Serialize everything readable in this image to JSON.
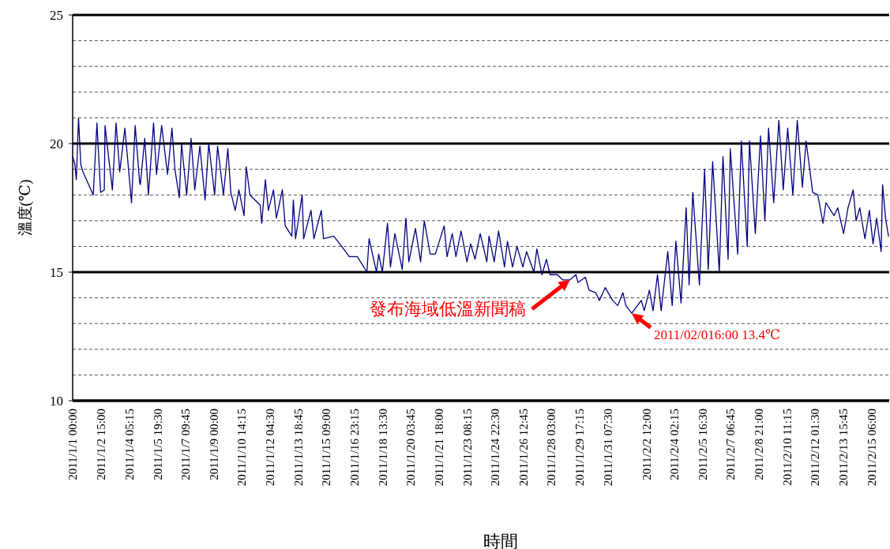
{
  "chart_data": {
    "type": "line",
    "xlabel": "時間",
    "ylabel": "溫度(℃)",
    "x": [
      "2011-01-01T00:00",
      "2011-01-01T03:00",
      "2011-01-01T05:00",
      "2011-01-01T08:00",
      "2011-01-01T11:00",
      "2011-01-01T14:00",
      "2011-01-02T04:00",
      "2011-01-02T09:00",
      "2011-01-02T14:00",
      "2011-01-02T19:00",
      "2011-01-02T20:00",
      "2011-01-03T06:00",
      "2011-01-03T11:00",
      "2011-01-03T16:00",
      "2011-01-03T23:00",
      "2011-01-04T08:00",
      "2011-01-04T13:00",
      "2011-01-04T19:00",
      "2011-01-04T20:00",
      "2011-01-05T02:00",
      "2011-01-05T07:00",
      "2011-01-05T14:00",
      "2011-01-05T18:00",
      "2011-01-06T01:00",
      "2011-01-06T09:00",
      "2011-01-06T15:00",
      "2011-01-06T19:00",
      "2011-01-07T01:00",
      "2011-01-07T04:00",
      "2011-01-07T11:00",
      "2011-01-07T17:00",
      "2011-01-07T22:00",
      "2011-01-08T05:00",
      "2011-01-08T12:00",
      "2011-01-08T17:00",
      "2011-01-09T01:00",
      "2011-01-09T05:00",
      "2011-01-09T13:00",
      "2011-01-09T19:00",
      "2011-01-09T23:00",
      "2011-01-10T05:00",
      "2011-01-10T10:00",
      "2011-01-10T17:00",
      "2011-01-10T20:00",
      "2011-01-11T01:00",
      "2011-01-11T15:00",
      "2011-01-11T17:00",
      "2011-01-11T22:00",
      "2011-01-12T02:00",
      "2011-01-12T09:00",
      "2011-01-12T13:00",
      "2011-01-12T21:00",
      "2011-01-13T01:00",
      "2011-01-13T10:00",
      "2011-01-13T12:00",
      "2011-01-13T15:00",
      "2011-01-14T00:00",
      "2011-01-14T02:00",
      "2011-01-14T12:00",
      "2011-01-14T16:00",
      "2011-01-15T02:00",
      "2011-01-15T05:00",
      "2011-01-15T19:00",
      "2011-01-16T11:00",
      "2011-01-16T16:00",
      "2011-01-17T03:00",
      "2011-01-17T16:00",
      "2011-01-17T19:00",
      "2011-01-18T05:00",
      "2011-01-18T08:00",
      "2011-01-18T13:00",
      "2011-01-18T20:00",
      "2011-01-19T00:00",
      "2011-01-19T06:00",
      "2011-01-19T16:00",
      "2011-01-19T21:00",
      "2011-01-20T01:00",
      "2011-01-20T10:00",
      "2011-01-20T17:00",
      "2011-01-20T22:00",
      "2011-01-21T06:00",
      "2011-01-21T13:00",
      "2011-01-22T01:00",
      "2011-01-22T05:00",
      "2011-01-22T12:00",
      "2011-01-22T17:00",
      "2011-01-23T00:00",
      "2011-01-23T08:00",
      "2011-01-23T13:00",
      "2011-01-23T19:00",
      "2011-01-24T02:00",
      "2011-01-24T11:00",
      "2011-01-24T14:00",
      "2011-01-24T21:00",
      "2011-01-25T03:00",
      "2011-01-25T11:00",
      "2011-01-25T15:00",
      "2011-01-25T22:00",
      "2011-01-26T04:00",
      "2011-01-26T12:00",
      "2011-01-26T17:00",
      "2011-01-27T03:00",
      "2011-01-27T07:00",
      "2011-01-27T14:00",
      "2011-01-27T20:00",
      "2011-01-28T01:00",
      "2011-01-28T11:00",
      "2011-01-28T18:00",
      "2011-01-29T04:00",
      "2011-01-29T12:00",
      "2011-01-29T15:00",
      "2011-01-30T01:00",
      "2011-01-30T06:00",
      "2011-01-30T15:00",
      "2011-01-30T20:00",
      "2011-01-31T04:00",
      "2011-01-31T14:00",
      "2011-01-31T21:00",
      "2011-02-01T04:00",
      "2011-02-01T08:00",
      "2011-02-01T16:00",
      "2011-02-02T05:00",
      "2011-02-02T09:00",
      "2011-02-02T16:00",
      "2011-02-02T21:00",
      "2011-02-03T03:00",
      "2011-02-03T08:00",
      "2011-02-03T17:00",
      "2011-02-03T23:00",
      "2011-02-04T04:00",
      "2011-02-04T11:00",
      "2011-02-04T18:00",
      "2011-02-04T22:00",
      "2011-02-05T03:00",
      "2011-02-05T12:00",
      "2011-02-05T19:00",
      "2011-02-06T00:00",
      "2011-02-06T06:00",
      "2011-02-06T15:00",
      "2011-02-06T20:00",
      "2011-02-07T03:00",
      "2011-02-07T06:00",
      "2011-02-07T16:00",
      "2011-02-07T21:00",
      "2011-02-08T05:00",
      "2011-02-08T08:00",
      "2011-02-08T16:00",
      "2011-02-08T23:00",
      "2011-02-09T05:00",
      "2011-02-09T10:00",
      "2011-02-09T17:00",
      "2011-02-10T00:00",
      "2011-02-10T06:00",
      "2011-02-10T12:00",
      "2011-02-10T19:00",
      "2011-02-11T01:00",
      "2011-02-11T08:00",
      "2011-02-11T13:00",
      "2011-02-11T22:00",
      "2011-02-12T05:00",
      "2011-02-12T12:00",
      "2011-02-12T16:00",
      "2011-02-13T03:00",
      "2011-02-13T08:00",
      "2011-02-13T16:00",
      "2011-02-13T22:00",
      "2011-02-14T05:00",
      "2011-02-14T09:00",
      "2011-02-14T14:00",
      "2011-02-14T21:00",
      "2011-02-15T03:00",
      "2011-02-15T08:00",
      "2011-02-15T13:00",
      "2011-02-15T19:00",
      "2011-02-15T21:00",
      "2011-02-16T01:00",
      "2011-02-16T05:00"
    ],
    "series": [
      {
        "color": "#000080",
        "values": [
          19.5,
          19.2,
          18.6,
          21.0,
          19.2,
          18.9,
          18.0,
          20.8,
          18.1,
          18.2,
          20.7,
          18.2,
          20.8,
          18.9,
          20.6,
          17.7,
          20.7,
          18.5,
          18.4,
          20.2,
          18.0,
          20.8,
          18.8,
          20.7,
          18.8,
          20.6,
          19.0,
          17.9,
          20.0,
          18.0,
          20.2,
          18.2,
          19.9,
          17.8,
          20.0,
          18.0,
          19.9,
          18.0,
          19.8,
          18.1,
          17.4,
          18.2,
          17.2,
          19.1,
          18.0,
          17.6,
          16.9,
          18.6,
          17.4,
          18.2,
          17.1,
          18.2,
          16.8,
          16.4,
          17.8,
          16.3,
          18.0,
          16.3,
          17.4,
          16.3,
          17.4,
          16.3,
          16.4,
          15.8,
          15.6,
          15.6,
          15.0,
          16.3,
          15.0,
          15.7,
          15.0,
          16.9,
          15.2,
          16.5,
          15.1,
          17.1,
          15.4,
          16.7,
          15.4,
          17.0,
          15.7,
          15.7,
          16.8,
          15.6,
          16.5,
          15.6,
          16.6,
          15.4,
          16.1,
          15.5,
          16.5,
          15.4,
          16.4,
          15.4,
          16.6,
          15.2,
          16.2,
          15.2,
          16.0,
          15.2,
          15.8,
          15.0,
          15.9,
          14.9,
          15.5,
          14.9,
          14.9,
          14.7,
          14.7,
          14.9,
          14.6,
          14.8,
          14.3,
          14.2,
          13.9,
          14.4,
          13.9,
          13.7,
          14.2,
          13.7,
          13.4,
          13.9,
          13.5,
          14.3,
          13.5,
          14.9,
          13.5,
          15.8,
          13.7,
          16.2,
          13.8,
          17.5,
          14.5,
          18.1,
          14.5,
          19.0,
          15.1,
          19.3,
          15.0,
          19.5,
          15.5,
          19.8,
          15.7,
          20.1,
          16.0,
          20.1,
          16.5,
          20.3,
          17.0,
          20.6,
          17.7,
          20.9,
          18.2,
          20.6,
          18.0,
          20.9,
          18.3,
          20.1,
          18.1,
          18.0,
          16.9,
          17.7,
          17.2,
          17.5,
          16.5,
          17.5,
          18.2,
          17.0,
          17.5,
          16.3,
          17.4,
          16.1,
          17.1,
          15.8,
          18.4,
          17.1,
          16.4
        ]
      }
    ],
    "xlim": [
      "2011-01-01T00:00",
      "2011-02-16T06:00"
    ],
    "xticks": [
      {
        "value": "2011-01-01T00:00",
        "label": "2011/1/1 00:00"
      },
      {
        "value": "2011-01-02T15:00",
        "label": "2011/1/2 15:00"
      },
      {
        "value": "2011-01-04T05:15",
        "label": "2011/1/4 05:15"
      },
      {
        "value": "2011-01-05T19:30",
        "label": "2011/1/5 19:30"
      },
      {
        "value": "2011-01-07T09:45",
        "label": "2011/1/7 09:45"
      },
      {
        "value": "2011-01-09T00:00",
        "label": "2011/1/9 00:00"
      },
      {
        "value": "2011-01-10T14:15",
        "label": "2011/1/10 14:15"
      },
      {
        "value": "2011-01-12T04:30",
        "label": "2011/1/12 04:30"
      },
      {
        "value": "2011-01-13T18:45",
        "label": "2011/1/13 18:45"
      },
      {
        "value": "2011-01-15T09:00",
        "label": "2011/1/15 09:00"
      },
      {
        "value": "2011-01-16T23:15",
        "label": "2011/1/16 23:15"
      },
      {
        "value": "2011-01-18T13:30",
        "label": "2011/1/18 13:30"
      },
      {
        "value": "2011-01-20T03:45",
        "label": "2011/1/20 03:45"
      },
      {
        "value": "2011-01-21T18:00",
        "label": "2011/1/21 18:00"
      },
      {
        "value": "2011-01-23T08:15",
        "label": "2011/1/23 08:15"
      },
      {
        "value": "2011-01-24T22:30",
        "label": "2011/1/24 22:30"
      },
      {
        "value": "2011-01-26T12:45",
        "label": "2011/1/26 12:45"
      },
      {
        "value": "2011-01-28T03:00",
        "label": "2011/1/28 03:00"
      },
      {
        "value": "2011-01-29T17:15",
        "label": "2011/1/29 17:15"
      },
      {
        "value": "2011-01-31T07:30",
        "label": "2011/1/31 07:30"
      },
      {
        "value": "2011-02-02T12:00",
        "label": "2011/2/2 12:00"
      },
      {
        "value": "2011-02-04T02:15",
        "label": "2011/2/4 02:15"
      },
      {
        "value": "2011-02-05T16:30",
        "label": "2011/2/5 16:30"
      },
      {
        "value": "2011-02-07T06:45",
        "label": "2011/2/7 06:45"
      },
      {
        "value": "2011-02-08T21:00",
        "label": "2011/2/8 21:00"
      },
      {
        "value": "2011-02-10T11:15",
        "label": "2011/2/10 11:15"
      },
      {
        "value": "2011-02-12T01:30",
        "label": "2011/2/12 01:30"
      },
      {
        "value": "2011-02-13T15:45",
        "label": "2011/2/13 15:45"
      },
      {
        "value": "2011-02-15T06:00",
        "label": "2011/2/15 06:00"
      }
    ],
    "ylim": [
      10,
      25
    ],
    "yticks": [
      10,
      {
        "value": 11,
        "label": null
      },
      {
        "value": 12,
        "label": null
      },
      {
        "value": 13,
        "label": null
      },
      {
        "value": 14,
        "label": null
      },
      15,
      {
        "value": 16,
        "label": null
      },
      {
        "value": 17,
        "label": null
      },
      {
        "value": 18,
        "label": null
      },
      {
        "value": 19,
        "label": null
      },
      20,
      {
        "value": 21,
        "label": null
      },
      {
        "value": 22,
        "label": null
      },
      {
        "value": 23,
        "label": null
      },
      {
        "value": 24,
        "label": null
      },
      25
    ],
    "grid": "y",
    "marker": "none",
    "line_style": "solid",
    "annotations": [
      {
        "text": "發布海域低溫新聞稿",
        "x": "2011-01-29T04:00",
        "y": 14.7
      },
      {
        "text": "2011/02/016:00  13.4℃",
        "x": "2011-02-01T16:00",
        "y": 13.4
      }
    ]
  }
}
